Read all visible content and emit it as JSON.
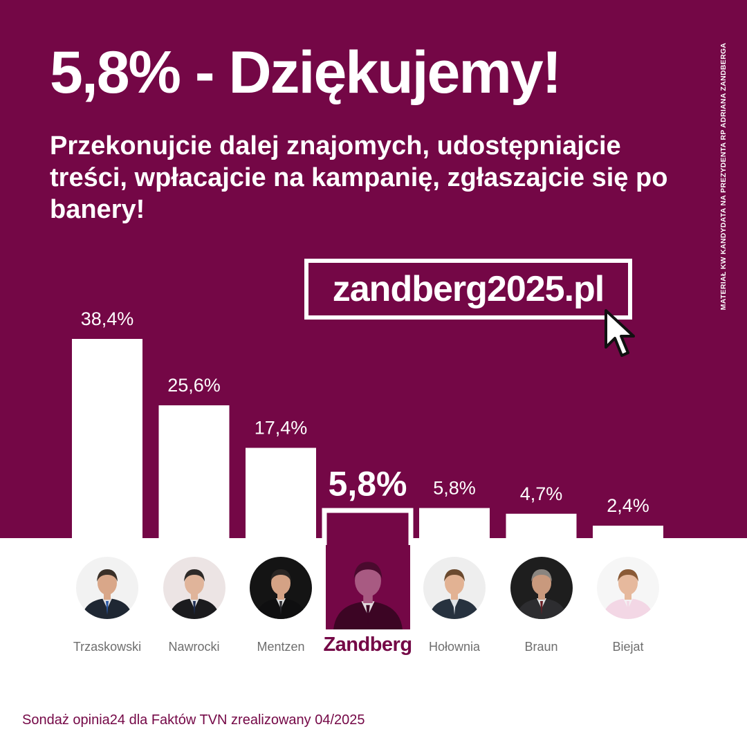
{
  "headline": "5,8% - Dziękujemy!",
  "subtitle": "Przekonujcie dalej znajomych, udostępniajcie treści, wpłacajcie na kampanię, zgłaszajcie się po banery!",
  "url": "zandberg2025.pl",
  "side_note": "MATERIAŁ KW KANDYDATA NA PREZYDENTA RP ADRIANA ZANDBERGA",
  "source": "Sondaż opinia24 dla Faktów TVN zrealizowany 04/2025",
  "colors": {
    "brand": "#740746",
    "bar": "#ffffff",
    "name_text": "#6e6e6e"
  },
  "chart_data": {
    "type": "bar",
    "title": "",
    "categories": [
      "Trzaskowski",
      "Nawrocki",
      "Mentzen",
      "Zandberg",
      "Hołownia",
      "Braun",
      "Biejat"
    ],
    "values": [
      38.4,
      25.6,
      17.4,
      5.8,
      5.8,
      4.7,
      2.4
    ],
    "value_labels": [
      "38,4%",
      "25,6%",
      "17,4%",
      "5,8%",
      "5,8%",
      "4,7%",
      "2,4%"
    ],
    "highlighted": "Zandberg",
    "ylim": [
      0,
      40
    ],
    "grid": false,
    "legend": "none"
  },
  "candidates": [
    {
      "name": "Trzaskowski",
      "photo": "candidate-portrait",
      "photo_bg": "#f2f2f2",
      "photo_suit": "#1f2733",
      "photo_skin": "#d9a789",
      "photo_hair": "#3a3028",
      "photo_tie": "#2a5aa8"
    },
    {
      "name": "Nawrocki",
      "photo": "candidate-portrait",
      "photo_bg": "#ece4e4",
      "photo_suit": "#1b1b1e",
      "photo_skin": "#e0b49a",
      "photo_hair": "#2e2a28",
      "photo_tie": "#1d2e55"
    },
    {
      "name": "Mentzen",
      "photo": "candidate-portrait",
      "photo_bg": "#141414",
      "photo_suit": "#0f0f10",
      "photo_skin": "#d4a285",
      "photo_hair": "#2a2624",
      "photo_tie": "#2b2b30"
    },
    {
      "name": "Zandberg",
      "photo": "candidate-portrait",
      "photo_bg": "#740746",
      "photo_suit": "#3c0524",
      "photo_skin": "#a85a82",
      "photo_hair": "#4a0a2e",
      "photo_tie": "#3c0524"
    },
    {
      "name": "Hołownia",
      "photo": "candidate-portrait",
      "photo_bg": "#eeeeee",
      "photo_suit": "#27323f",
      "photo_skin": "#e2b293",
      "photo_hair": "#6b4a2f",
      "photo_tie": "#dfe4ea"
    },
    {
      "name": "Braun",
      "photo": "candidate-portrait",
      "photo_bg": "#1e1e1e",
      "photo_suit": "#2d2d30",
      "photo_skin": "#c9997d",
      "photo_hair": "#8a8580",
      "photo_tie": "#6a1f25"
    },
    {
      "name": "Biejat",
      "photo": "candidate-portrait",
      "photo_bg": "#f6f6f6",
      "photo_suit": "#f3d7e5",
      "photo_skin": "#e6b99d",
      "photo_hair": "#8a5a36",
      "photo_tie": "#f3d7e5"
    }
  ]
}
